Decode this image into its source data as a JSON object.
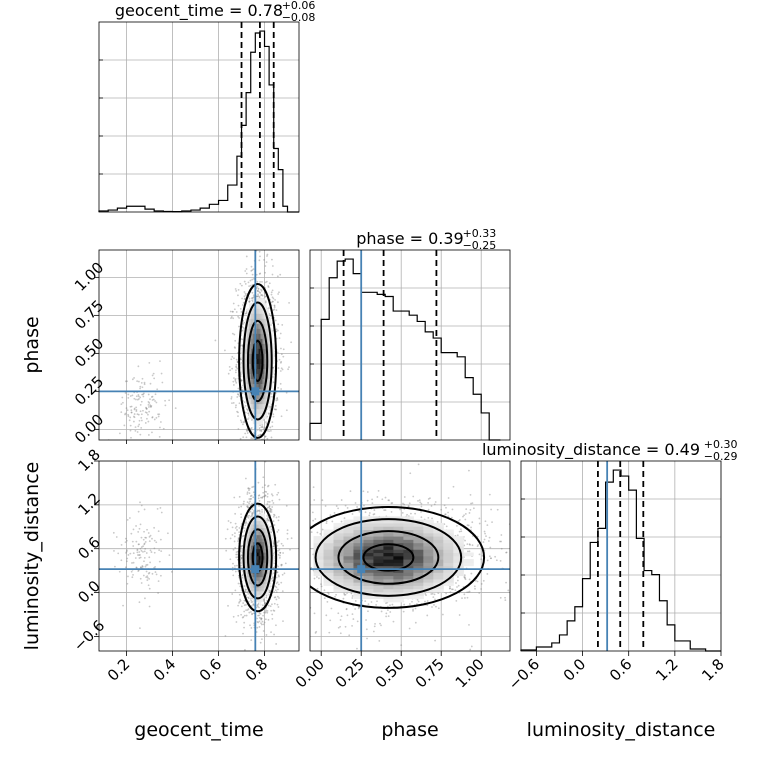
{
  "chart_data": {
    "type": "corner",
    "parameters": [
      "geocent_time",
      "phase",
      "luminosity_distance"
    ],
    "axis_labels": {
      "geocent_time": "geocent_time",
      "phase": "phase",
      "luminosity_distance": "luminosity_distance"
    },
    "ranges": {
      "geocent_time": [
        0.08,
        0.95
      ],
      "phase": [
        -0.07,
        1.18
      ],
      "luminosity_distance": [
        -0.8,
        1.8
      ]
    },
    "ticks": {
      "geocent_time": {
        "values": [
          0.2,
          0.4,
          0.6,
          0.8
        ],
        "labels": [
          "0.2",
          "0.4",
          "0.6",
          "0.8"
        ]
      },
      "phase": {
        "values": [
          0.0,
          0.25,
          0.5,
          0.75,
          1.0
        ],
        "labels": [
          "0.00",
          "0.25",
          "0.50",
          "0.75",
          "1.00"
        ]
      },
      "luminosity_distance": {
        "values": [
          -0.6,
          0.0,
          0.6,
          1.2,
          1.8
        ],
        "labels": [
          "−0.6",
          "0.0",
          "0.6",
          "1.2",
          "1.8"
        ]
      }
    },
    "truths": {
      "geocent_time": 0.76,
      "phase": 0.25,
      "luminosity_distance": 0.32
    },
    "titles": [
      {
        "param": "geocent_time",
        "text": "geocent_time = 0.78",
        "plus": "+0.06",
        "minus": "−0.08",
        "quantiles": [
          0.7,
          0.78,
          0.84
        ]
      },
      {
        "param": "phase",
        "text": "phase = 0.39",
        "plus": "+0.33",
        "minus": "−0.25",
        "quantiles": [
          0.14,
          0.39,
          0.72
        ]
      },
      {
        "param": "luminosity_distance",
        "text": "luminosity_distance = 0.49",
        "plus": "+0.30",
        "minus": "−0.29",
        "quantiles": [
          0.2,
          0.49,
          0.79
        ]
      }
    ],
    "histograms": {
      "geocent_time": {
        "edges": [
          0.08,
          0.12,
          0.16,
          0.2,
          0.24,
          0.28,
          0.32,
          0.36,
          0.4,
          0.44,
          0.48,
          0.52,
          0.56,
          0.6,
          0.64,
          0.68,
          0.7,
          0.72,
          0.74,
          0.76,
          0.78,
          0.8,
          0.82,
          0.84,
          0.86,
          0.88,
          0.9,
          0.95
        ],
        "counts": [
          0.005,
          0.01,
          0.02,
          0.03,
          0.03,
          0.015,
          0.005,
          0.003,
          0.002,
          0.005,
          0.01,
          0.02,
          0.04,
          0.06,
          0.14,
          0.29,
          0.45,
          0.62,
          0.83,
          0.93,
          0.94,
          0.86,
          0.66,
          0.33,
          0.22,
          0.03,
          0.0
        ]
      },
      "phase": {
        "edges": [
          -0.07,
          0.0,
          0.05,
          0.1,
          0.15,
          0.2,
          0.25,
          0.3,
          0.35,
          0.4,
          0.45,
          0.5,
          0.55,
          0.6,
          0.65,
          0.7,
          0.75,
          0.8,
          0.85,
          0.9,
          0.95,
          1.0,
          1.05,
          1.12
        ],
        "counts": [
          0.08,
          0.58,
          0.78,
          0.86,
          0.87,
          0.8,
          0.71,
          0.71,
          0.7,
          0.69,
          0.62,
          0.62,
          0.6,
          0.57,
          0.52,
          0.49,
          0.42,
          0.42,
          0.4,
          0.3,
          0.22,
          0.13,
          0.0
        ]
      },
      "luminosity_distance": {
        "edges": [
          -0.8,
          -0.6,
          -0.4,
          -0.3,
          -0.2,
          -0.1,
          0.0,
          0.1,
          0.2,
          0.3,
          0.4,
          0.5,
          0.6,
          0.7,
          0.8,
          0.9,
          1.0,
          1.1,
          1.2,
          1.4,
          1.6,
          1.8
        ],
        "counts": [
          0.005,
          0.02,
          0.04,
          0.08,
          0.15,
          0.22,
          0.36,
          0.54,
          0.61,
          0.84,
          0.9,
          0.87,
          0.8,
          0.56,
          0.4,
          0.38,
          0.25,
          0.13,
          0.05,
          0.01,
          0.0
        ]
      }
    },
    "panels_2d": [
      {
        "x": "geocent_time",
        "y": "phase",
        "core": {
          "cx": 0.77,
          "cy": 0.45,
          "sx": 0.035,
          "sy": 0.22
        },
        "tail": {
          "cx": 0.27,
          "cy": 0.15,
          "sx": 0.05,
          "sy": 0.12
        }
      },
      {
        "x": "geocent_time",
        "y": "luminosity_distance",
        "core": {
          "cx": 0.77,
          "cy": 0.48,
          "sx": 0.035,
          "sy": 0.32
        },
        "tail": {
          "cx": 0.27,
          "cy": 0.5,
          "sx": 0.05,
          "sy": 0.3
        }
      },
      {
        "x": "phase",
        "y": "luminosity_distance",
        "core": {
          "cx": 0.42,
          "cy": 0.48,
          "sx": 0.26,
          "sy": 0.3
        }
      }
    ]
  }
}
